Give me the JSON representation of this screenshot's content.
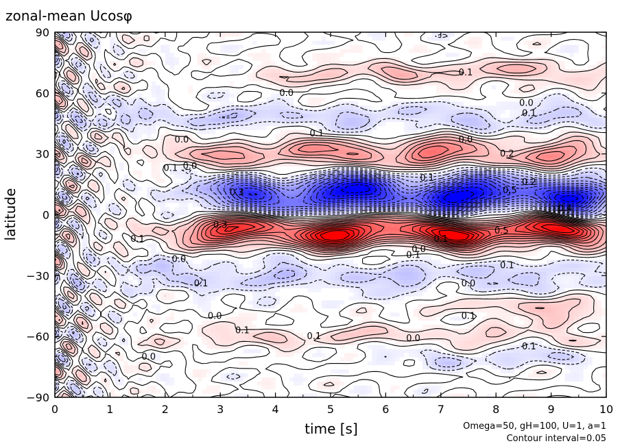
{
  "chart_data": {
    "type": "heatmap",
    "title": "zonal-mean Ucosφ",
    "xlabel": "time [s]",
    "ylabel": "latitude",
    "xlim": [
      0,
      10
    ],
    "ylim": [
      -90,
      90
    ],
    "xticks": [
      0,
      1,
      2,
      3,
      4,
      5,
      6,
      7,
      8,
      9,
      10
    ],
    "yticks": [
      90,
      60,
      30,
      0,
      -30,
      -60,
      -90
    ],
    "ytick_labels": [
      "90",
      "60",
      "30",
      "0",
      "−30",
      "−60",
      "−90"
    ],
    "notes": [
      "Omega=50, gH=100, U=1, a=1",
      "Contour interval=0.05"
    ],
    "contour_interval": 0.05,
    "colors": {
      "positive": "#ff0000",
      "negative": "#0000ff",
      "zero": "#ffffff"
    },
    "features": [
      {
        "lat": -8,
        "t0": 2.5,
        "t1": 10,
        "amp": 0.6,
        "width": 7
      },
      {
        "lat": 10,
        "t0": 3,
        "t1": 10,
        "amp": -0.6,
        "width": 9
      },
      {
        "lat": 30,
        "t0": 2.2,
        "t1": 10,
        "amp": 0.25,
        "width": 7
      },
      {
        "lat": 30,
        "t0": 6,
        "t1": 7,
        "amp": 0.15,
        "width": 4
      },
      {
        "lat": 48,
        "t0": 0.5,
        "t1": 10,
        "amp": -0.12,
        "width": 6
      },
      {
        "lat": 70,
        "t0": 4,
        "t1": 10,
        "amp": 0.15,
        "width": 5
      },
      {
        "lat": -30,
        "t0": 1,
        "t1": 10,
        "amp": -0.12,
        "width": 8
      },
      {
        "lat": -45,
        "t0": 7.5,
        "t1": 10,
        "amp": 0.15,
        "width": 6
      },
      {
        "lat": -60,
        "t0": 2,
        "t1": 10,
        "amp": 0.1,
        "width": 5
      },
      {
        "lat": -70,
        "t0": 6,
        "t1": 10,
        "amp": -0.1,
        "width": 5
      }
    ],
    "contour_labels": [
      {
        "t": 7.45,
        "lat": 70,
        "text": "0.1"
      },
      {
        "t": 4.2,
        "lat": 60,
        "text": "0.0"
      },
      {
        "t": 8.55,
        "lat": 55,
        "text": "0.0"
      },
      {
        "t": 8.6,
        "lat": 50,
        "text": "0.1"
      },
      {
        "t": 2.3,
        "lat": 37,
        "text": "0.0"
      },
      {
        "t": 4.75,
        "lat": 40,
        "text": "0.1"
      },
      {
        "t": 7.45,
        "lat": 37,
        "text": "0.0"
      },
      {
        "t": 8.2,
        "lat": 30,
        "text": "0.2"
      },
      {
        "t": 2.1,
        "lat": 23,
        "text": "0.1"
      },
      {
        "t": 2.45,
        "lat": 24,
        "text": "0.0"
      },
      {
        "t": 3.3,
        "lat": 11,
        "text": "0.3"
      },
      {
        "t": 6.75,
        "lat": 18,
        "text": "0.1"
      },
      {
        "t": 8.6,
        "lat": 16,
        "text": "0.2"
      },
      {
        "t": 8.25,
        "lat": 12,
        "text": "0.5"
      },
      {
        "t": 9.25,
        "lat": 3,
        "text": "0.4"
      },
      {
        "t": 1.5,
        "lat": -12,
        "text": "0.1"
      },
      {
        "t": 3.0,
        "lat": -5,
        "text": "0.3"
      },
      {
        "t": 8.1,
        "lat": -8,
        "text": "0.5"
      },
      {
        "t": 7.0,
        "lat": -12,
        "text": "0.1"
      },
      {
        "t": 6.6,
        "lat": -17,
        "text": "0.0"
      },
      {
        "t": 6.5,
        "lat": -20,
        "text": "0.1"
      },
      {
        "t": 2.25,
        "lat": -22,
        "text": "0.0"
      },
      {
        "t": 8.2,
        "lat": -25,
        "text": "0.1"
      },
      {
        "t": 2.65,
        "lat": -34,
        "text": "0.1"
      },
      {
        "t": 7.5,
        "lat": -34,
        "text": "0.0"
      },
      {
        "t": 2.9,
        "lat": -50,
        "text": "0.0"
      },
      {
        "t": 7.5,
        "lat": -50,
        "text": "0.1"
      },
      {
        "t": 3.4,
        "lat": -57,
        "text": "0.1"
      },
      {
        "t": 4.7,
        "lat": -60,
        "text": "0.1"
      },
      {
        "t": 6.5,
        "lat": -61,
        "text": "0.0"
      },
      {
        "t": 8.6,
        "lat": -65,
        "text": "0.1"
      },
      {
        "t": 1.7,
        "lat": -70,
        "text": "0.0"
      }
    ]
  }
}
